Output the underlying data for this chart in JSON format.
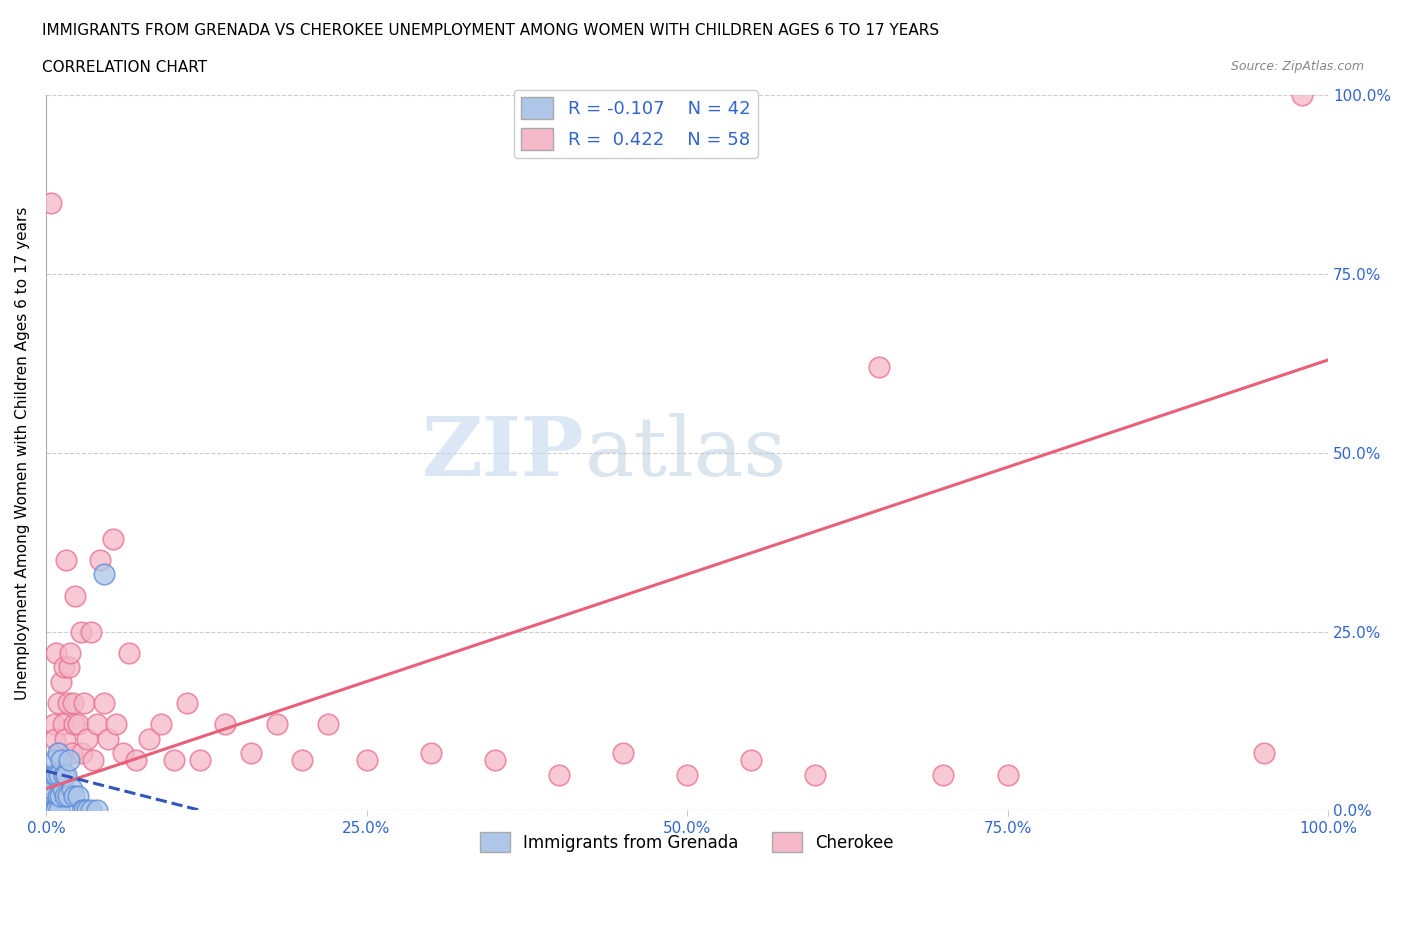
{
  "title": "IMMIGRANTS FROM GRENADA VS CHEROKEE UNEMPLOYMENT AMONG WOMEN WITH CHILDREN AGES 6 TO 17 YEARS",
  "subtitle": "CORRELATION CHART",
  "source": "Source: ZipAtlas.com",
  "ylabel": "Unemployment Among Women with Children Ages 6 to 17 years",
  "watermark_zip": "ZIP",
  "watermark_atlas": "atlas",
  "legend_label1": "Immigrants from Grenada",
  "legend_label2": "Cherokee",
  "R1": -0.107,
  "N1": 42,
  "R2": 0.422,
  "N2": 58,
  "color_blue_fill": "#AEC6E8",
  "color_pink_fill": "#F4B8C8",
  "color_blue_edge": "#5B8DD9",
  "color_pink_edge": "#E87090",
  "color_blue_line": "#3355BB",
  "color_pink_line": "#E8607A",
  "xlim": [
    0.0,
    1.0
  ],
  "ylim": [
    0.0,
    1.0
  ],
  "yticks": [
    0.0,
    0.25,
    0.5,
    0.75,
    1.0
  ],
  "ytick_labels": [
    "0.0%",
    "25.0%",
    "50.0%",
    "75.0%",
    "100.0%"
  ],
  "xtick_labels": [
    "0.0%",
    "25.0%",
    "50.0%",
    "75.0%",
    "100.0%"
  ],
  "blue_x": [
    0.0008,
    0.001,
    0.0012,
    0.0015,
    0.0015,
    0.002,
    0.002,
    0.002,
    0.003,
    0.003,
    0.004,
    0.004,
    0.004,
    0.005,
    0.005,
    0.006,
    0.006,
    0.007,
    0.007,
    0.008,
    0.008,
    0.009,
    0.009,
    0.01,
    0.01,
    0.011,
    0.012,
    0.013,
    0.014,
    0.015,
    0.016,
    0.017,
    0.018,
    0.02,
    0.022,
    0.025,
    0.028,
    0.03,
    0.032,
    0.035,
    0.04,
    0.045
  ],
  "blue_y": [
    0.0,
    0.0,
    0.0,
    0.0,
    0.0,
    0.0,
    0.0,
    0.0,
    0.0,
    0.0,
    0.0,
    0.0,
    0.02,
    0.0,
    0.03,
    0.0,
    0.05,
    0.0,
    0.07,
    0.0,
    0.05,
    0.02,
    0.08,
    0.0,
    0.05,
    0.02,
    0.07,
    0.03,
    0.05,
    0.02,
    0.05,
    0.02,
    0.07,
    0.03,
    0.02,
    0.02,
    0.0,
    0.0,
    0.0,
    0.0,
    0.0,
    0.33
  ],
  "pink_x": [
    0.002,
    0.004,
    0.006,
    0.007,
    0.008,
    0.009,
    0.01,
    0.012,
    0.013,
    0.014,
    0.015,
    0.016,
    0.017,
    0.018,
    0.019,
    0.02,
    0.021,
    0.022,
    0.023,
    0.025,
    0.027,
    0.028,
    0.03,
    0.032,
    0.035,
    0.037,
    0.04,
    0.042,
    0.045,
    0.048,
    0.052,
    0.055,
    0.06,
    0.065,
    0.07,
    0.08,
    0.09,
    0.1,
    0.11,
    0.12,
    0.14,
    0.16,
    0.18,
    0.2,
    0.22,
    0.25,
    0.3,
    0.35,
    0.4,
    0.45,
    0.5,
    0.55,
    0.6,
    0.65,
    0.7,
    0.75,
    0.95,
    0.98
  ],
  "pink_y": [
    0.05,
    0.85,
    0.12,
    0.1,
    0.22,
    0.15,
    0.08,
    0.18,
    0.12,
    0.2,
    0.1,
    0.35,
    0.15,
    0.2,
    0.22,
    0.08,
    0.15,
    0.12,
    0.3,
    0.12,
    0.25,
    0.08,
    0.15,
    0.1,
    0.25,
    0.07,
    0.12,
    0.35,
    0.15,
    0.1,
    0.38,
    0.12,
    0.08,
    0.22,
    0.07,
    0.1,
    0.12,
    0.07,
    0.15,
    0.07,
    0.12,
    0.08,
    0.12,
    0.07,
    0.12,
    0.07,
    0.08,
    0.07,
    0.05,
    0.08,
    0.05,
    0.07,
    0.05,
    0.62,
    0.05,
    0.05,
    0.08,
    1.0
  ],
  "pink_line_x0": 0.0,
  "pink_line_y0": 0.03,
  "pink_line_x1": 1.0,
  "pink_line_y1": 0.63,
  "blue_line_x0": 0.0,
  "blue_line_y0": 0.055,
  "blue_line_x1": 0.12,
  "blue_line_y1": 0.0
}
